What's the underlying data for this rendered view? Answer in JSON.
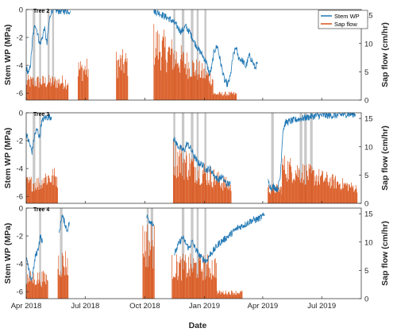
{
  "figure": {
    "xlabel": "Date",
    "xticks": [
      {
        "date": "2018-04-01",
        "label": "Apr 2018"
      },
      {
        "date": "2018-07-01",
        "label": "Jul 2018"
      },
      {
        "date": "2018-10-01",
        "label": "Oct 2018"
      },
      {
        "date": "2019-01-01",
        "label": "Jan 2019"
      },
      {
        "date": "2019-04-01",
        "label": "Apr 2019"
      },
      {
        "date": "2019-07-01",
        "label": "Jul 2019"
      }
    ],
    "xlim": [
      "2018-04-01",
      "2019-08-31"
    ],
    "colors": {
      "stem_wp": "#1f77b4",
      "sap_flow": "#d95319",
      "shading": "#c8c8c8"
    }
  },
  "chart_data": [
    {
      "type": "line",
      "title": "Tree 2",
      "ylabel_left": "Stem WP (MPa)",
      "ylabel_right": "Sap flow (cm/hr)",
      "ylim_left": [
        -6.5,
        0
      ],
      "ylim_right": [
        0,
        16
      ],
      "yticks_left": [
        0,
        -2,
        -4,
        -6
      ],
      "yticks_right": [
        0,
        5,
        10,
        15
      ],
      "legend": {
        "placement": "top-right",
        "entries": [
          "Stem WP",
          "Sap flow"
        ]
      },
      "shaded_periods": [
        [
          "2018-04-11",
          "2018-04-15"
        ],
        [
          "2018-04-21",
          "2018-04-24"
        ],
        [
          "2018-05-04",
          "2018-05-07"
        ],
        [
          "2018-05-11",
          "2018-05-14"
        ],
        [
          "2018-11-14",
          "2018-11-17"
        ],
        [
          "2018-11-27",
          "2018-12-01"
        ],
        [
          "2018-12-11",
          "2018-12-15"
        ],
        [
          "2018-12-20",
          "2018-12-23"
        ],
        [
          "2019-01-01",
          "2019-01-04"
        ]
      ],
      "series": [
        {
          "name": "Stem WP",
          "axis": "left",
          "points": [
            [
              "2018-04-01",
              -4.2
            ],
            [
              "2018-04-05",
              -4.6
            ],
            [
              "2018-04-08",
              -3.8
            ],
            [
              "2018-04-11",
              -2.0
            ],
            [
              "2018-04-15",
              -1.0
            ],
            [
              "2018-04-18",
              -1.6
            ],
            [
              "2018-04-22",
              -2.5
            ],
            [
              "2018-04-26",
              -2.0
            ],
            [
              "2018-04-29",
              -1.3
            ],
            [
              "2018-05-03",
              -2.5
            ],
            [
              "2018-05-06",
              -1.0
            ],
            [
              "2018-05-09",
              -0.2
            ],
            [
              "2018-05-12",
              0.0
            ],
            [
              "2018-05-20",
              -0.1
            ],
            [
              "2018-05-31",
              -0.1
            ],
            [
              "2018-06-08",
              -0.1
            ],
            [
              "2018-06-09",
              null
            ],
            [
              "2018-10-15",
              -0.1
            ],
            [
              "2018-10-25",
              -0.3
            ],
            [
              "2018-11-05",
              -0.6
            ],
            [
              "2018-11-12",
              -0.8
            ],
            [
              "2018-11-18",
              -1.1
            ],
            [
              "2018-11-26",
              -1.6
            ],
            [
              "2018-12-03",
              -1.2
            ],
            [
              "2018-12-10",
              -1.7
            ],
            [
              "2018-12-16",
              -2.3
            ],
            [
              "2018-12-22",
              -2.8
            ],
            [
              "2018-12-28",
              -3.2
            ],
            [
              "2019-01-04",
              -3.8
            ],
            [
              "2019-01-09",
              -4.7
            ],
            [
              "2019-01-12",
              -4.2
            ],
            [
              "2019-01-16",
              -3.0
            ],
            [
              "2019-01-21",
              -2.6
            ],
            [
              "2019-01-26",
              -3.8
            ],
            [
              "2019-02-01",
              -5.1
            ],
            [
              "2019-02-06",
              -5.4
            ],
            [
              "2019-02-10",
              -4.8
            ],
            [
              "2019-02-14",
              -3.4
            ],
            [
              "2019-02-19",
              -2.7
            ],
            [
              "2019-02-22",
              -3.4
            ],
            [
              "2019-03-01",
              -3.7
            ],
            [
              "2019-03-06",
              -4.1
            ],
            [
              "2019-03-11",
              -3.3
            ],
            [
              "2019-03-15",
              -3.6
            ],
            [
              "2019-03-20",
              -4.2
            ],
            [
              "2019-03-24",
              -3.8
            ]
          ]
        },
        {
          "name": "Sap flow",
          "axis": "right",
          "bands": [
            {
              "start": "2018-04-01",
              "end": "2018-06-05",
              "low": 0.5,
              "high": 4.5
            },
            {
              "start": "2018-06-20",
              "end": "2018-07-06",
              "low": 1.0,
              "high": 7.5
            },
            {
              "start": "2018-08-18",
              "end": "2018-09-05",
              "low": 1.0,
              "high": 9.0
            },
            {
              "start": "2018-10-15",
              "end": "2019-01-15",
              "low": 1.0,
              "high": 14.0
            },
            {
              "start": "2019-01-15",
              "end": "2019-02-20",
              "low": 0.2,
              "high": 1.5
            }
          ]
        }
      ]
    },
    {
      "type": "line",
      "title": "Tree 3",
      "ylabel_left": "Stem WP (MPa)",
      "ylabel_right": "Sap flow (cm/hr)",
      "ylim_left": [
        -6.5,
        0
      ],
      "ylim_right": [
        0,
        16
      ],
      "yticks_left": [
        0,
        -2,
        -4,
        -6
      ],
      "yticks_right": [
        0,
        5,
        10,
        15
      ],
      "shaded_periods": [
        [
          "2018-04-11",
          "2018-04-15"
        ],
        [
          "2018-04-21",
          "2018-04-24"
        ],
        [
          "2018-11-14",
          "2018-11-17"
        ],
        [
          "2018-11-27",
          "2018-12-01"
        ],
        [
          "2018-12-11",
          "2018-12-15"
        ],
        [
          "2018-12-20",
          "2018-12-23"
        ],
        [
          "2019-01-01",
          "2019-01-04"
        ],
        [
          "2019-04-14",
          "2019-04-18"
        ],
        [
          "2019-05-28",
          "2019-06-01"
        ],
        [
          "2019-06-04",
          "2019-06-08"
        ],
        [
          "2019-06-13",
          "2019-06-17"
        ]
      ],
      "series": [
        {
          "name": "Stem WP",
          "axis": "left",
          "points": [
            [
              "2018-04-01",
              -1.5
            ],
            [
              "2018-04-06",
              -2.2
            ],
            [
              "2018-04-10",
              -2.8
            ],
            [
              "2018-04-14",
              -1.6
            ],
            [
              "2018-04-18",
              -1.2
            ],
            [
              "2018-04-22",
              -1.8
            ],
            [
              "2018-04-24",
              -0.8
            ],
            [
              "2018-04-28",
              -0.4
            ],
            [
              "2018-05-05",
              -0.3
            ],
            [
              "2018-05-10",
              -0.3
            ],
            [
              "2018-05-12",
              null
            ],
            [
              "2018-11-14",
              -1.8
            ],
            [
              "2018-11-20",
              -2.3
            ],
            [
              "2018-11-26",
              -2.6
            ],
            [
              "2018-12-01",
              -2.7
            ],
            [
              "2018-12-05",
              -2.2
            ],
            [
              "2018-12-10",
              -2.5
            ],
            [
              "2018-12-16",
              -3.1
            ],
            [
              "2018-12-22",
              -3.6
            ],
            [
              "2018-12-28",
              -3.7
            ],
            [
              "2019-01-04",
              -4.1
            ],
            [
              "2019-01-10",
              -4.0
            ],
            [
              "2019-01-16",
              -4.5
            ],
            [
              "2019-01-22",
              -4.8
            ],
            [
              "2019-01-28",
              -4.6
            ],
            [
              "2019-02-04",
              -5.1
            ],
            [
              "2019-02-10",
              -5.1
            ],
            [
              "2019-02-14",
              null
            ],
            [
              "2019-04-09",
              -4.9
            ],
            [
              "2019-04-14",
              -5.4
            ],
            [
              "2019-04-18",
              -5.3
            ],
            [
              "2019-04-24",
              -5.5
            ],
            [
              "2019-04-28",
              -4.6
            ],
            [
              "2019-05-02",
              -1.3
            ],
            [
              "2019-05-06",
              -0.7
            ],
            [
              "2019-05-14",
              -0.6
            ],
            [
              "2019-05-22",
              -0.5
            ],
            [
              "2019-06-01",
              -0.4
            ],
            [
              "2019-06-12",
              -0.3
            ],
            [
              "2019-06-24",
              -0.2
            ],
            [
              "2019-07-08",
              -0.2
            ],
            [
              "2019-07-22",
              -0.2
            ],
            [
              "2019-08-05",
              -0.1
            ],
            [
              "2019-08-22",
              -0.1
            ]
          ]
        },
        {
          "name": "Sap flow",
          "axis": "right",
          "bands": [
            {
              "start": "2018-04-01",
              "end": "2018-04-26",
              "low": 0.5,
              "high": 5.0
            },
            {
              "start": "2018-04-26",
              "end": "2018-05-20",
              "low": 0.5,
              "high": 6.5
            },
            {
              "start": "2018-11-14",
              "end": "2019-02-12",
              "low": 0.5,
              "high": 12.0
            },
            {
              "start": "2019-04-09",
              "end": "2019-05-01",
              "low": 0.5,
              "high": 3.5
            },
            {
              "start": "2019-05-01",
              "end": "2019-08-25",
              "low": 1.0,
              "high": 9.0
            }
          ]
        }
      ]
    },
    {
      "type": "line",
      "title": "Tree 4",
      "ylabel_left": "Stem WP (MPa)",
      "ylabel_right": "Sap flow (cm/hr)",
      "ylim_left": [
        -6.5,
        0
      ],
      "ylim_right": [
        0,
        16
      ],
      "yticks_left": [
        0,
        -2,
        -4,
        -6
      ],
      "yticks_right": [
        0,
        5,
        10,
        15
      ],
      "shaded_periods": [
        [
          "2018-04-21",
          "2018-04-24"
        ],
        [
          "2018-05-23",
          "2018-05-27"
        ],
        [
          "2018-10-04",
          "2018-10-07"
        ],
        [
          "2018-10-10",
          "2018-10-14"
        ],
        [
          "2018-11-27",
          "2018-12-01"
        ],
        [
          "2018-12-11",
          "2018-12-15"
        ],
        [
          "2018-12-20",
          "2018-12-23"
        ],
        [
          "2019-01-01",
          "2019-01-04"
        ]
      ],
      "series": [
        {
          "name": "Stem WP",
          "axis": "left",
          "points": [
            [
              "2018-04-01",
              -3.5
            ],
            [
              "2018-04-05",
              -4.5
            ],
            [
              "2018-04-09",
              -5.2
            ],
            [
              "2018-04-12",
              -4.5
            ],
            [
              "2018-04-15",
              -3.5
            ],
            [
              "2018-04-19",
              -3.0
            ],
            [
              "2018-04-23",
              -2.0
            ],
            [
              "2018-04-26",
              -2.5
            ],
            [
              "2018-04-28",
              null
            ],
            [
              "2018-05-22",
              -1.8
            ],
            [
              "2018-05-26",
              -0.5
            ],
            [
              "2018-05-30",
              -1.0
            ],
            [
              "2018-06-03",
              -1.6
            ],
            [
              "2018-06-07",
              -1.0
            ],
            [
              "2018-06-09",
              null
            ],
            [
              "2018-10-04",
              -0.6
            ],
            [
              "2018-10-08",
              -0.9
            ],
            [
              "2018-10-12",
              -1.0
            ],
            [
              "2018-10-15",
              -1.2
            ],
            [
              "2018-10-16",
              null
            ],
            [
              "2018-11-16",
              -3.3
            ],
            [
              "2018-11-22",
              -2.6
            ],
            [
              "2018-11-28",
              -2.1
            ],
            [
              "2018-12-03",
              -2.5
            ],
            [
              "2018-12-08",
              -2.9
            ],
            [
              "2018-12-13",
              -2.4
            ],
            [
              "2018-12-18",
              -2.9
            ],
            [
              "2018-12-23",
              -3.3
            ],
            [
              "2018-12-28",
              -3.6
            ],
            [
              "2019-01-04",
              -3.8
            ],
            [
              "2019-01-10",
              -3.3
            ],
            [
              "2019-01-16",
              -3.0
            ],
            [
              "2019-01-24",
              -2.5
            ],
            [
              "2019-02-02",
              -2.2
            ],
            [
              "2019-02-12",
              -1.8
            ],
            [
              "2019-02-22",
              -1.4
            ],
            [
              "2019-03-04",
              -1.2
            ],
            [
              "2019-03-14",
              -0.9
            ],
            [
              "2019-03-24",
              -0.8
            ],
            [
              "2019-04-04",
              -0.5
            ],
            [
              "2019-04-06",
              null
            ]
          ]
        },
        {
          "name": "Sap flow",
          "axis": "right",
          "bands": [
            {
              "start": "2018-04-01",
              "end": "2018-05-05",
              "low": 0.5,
              "high": 5.0
            },
            {
              "start": "2018-05-20",
              "end": "2018-06-05",
              "low": 0.5,
              "high": 9.0
            },
            {
              "start": "2018-09-28",
              "end": "2018-10-16",
              "low": 0.5,
              "high": 14.0
            },
            {
              "start": "2018-11-12",
              "end": "2019-01-20",
              "low": 0.5,
              "high": 8.0
            },
            {
              "start": "2019-01-20",
              "end": "2019-03-01",
              "low": 0.2,
              "high": 1.5
            }
          ]
        }
      ]
    }
  ]
}
